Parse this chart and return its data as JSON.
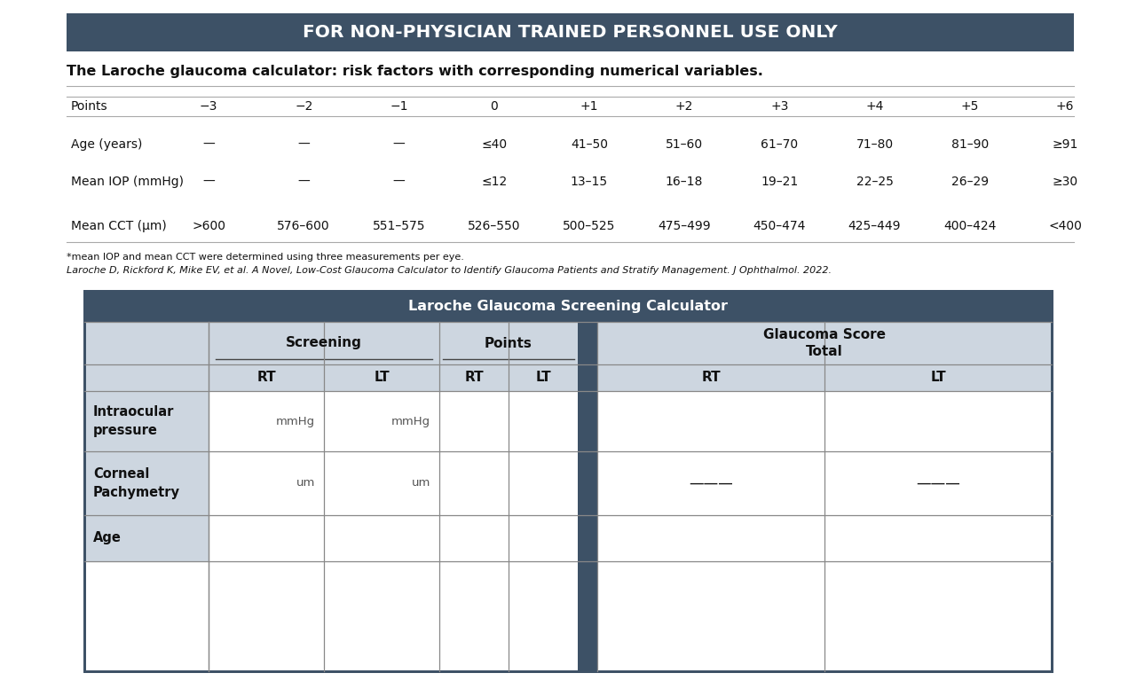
{
  "header_title": "FOR NON-PHYSICIAN TRAINED PERSONNEL USE ONLY",
  "header_bg": "#3d5166",
  "header_text_color": "#ffffff",
  "subtitle": "The Laroche glaucoma calculator: risk factors with corresponding numerical variables.",
  "points_row": [
    "Points",
    "−3",
    "−2",
    "−1",
    "0",
    "+1",
    "+2",
    "+3",
    "+4",
    "+5",
    "+6"
  ],
  "age_row": [
    "Age (years)",
    "—",
    "—",
    "—",
    "≤40",
    "41–50",
    "51–60",
    "61–70",
    "71–80",
    "81–90",
    "≥91"
  ],
  "iop_row": [
    "Mean IOP (mmHg)",
    "—",
    "—",
    "—",
    "≤12",
    "13–15",
    "16–18",
    "19–21",
    "22–25",
    "26–29",
    "≥30"
  ],
  "cct_row": [
    "Mean CCT (μm)",
    ">600",
    "576–600",
    "551–575",
    "526–550",
    "500–525",
    "475–499",
    "450–474",
    "425–449",
    "400–424",
    "<400"
  ],
  "footnote1": "*mean IOP and mean CCT were determined using three measurements per eye.",
  "footnote2": "Laroche D, Rickford K, Mike EV, et al. A Novel, Low-Cost Glaucoma Calculator to Identify Glaucoma Patients and Stratify Management. J Ophthalmol. 2022.",
  "calc_title": "Laroche Glaucoma Screening Calculator",
  "calc_header_bg": "#3d5166",
  "calc_subheader_bg": "#cdd6e0",
  "calc_row_label_bg": "#cdd6e0",
  "calc_border_color": "#3d5166",
  "screening_label": "Screening",
  "points_label": "Points",
  "score_label": "Glaucoma Score\nTotal",
  "rt_label": "RT",
  "lt_label": "LT",
  "row1_label": "Intraocular\npressure",
  "row2_label": "Corneal\nPachymetry",
  "row3_label": "Age",
  "mmhg_rt": "mmHg",
  "mmhg_lt": "mmHg",
  "um_rt": "um",
  "um_lt": "um",
  "line_color": "#aaaaaa",
  "dark_line_color": "#888888"
}
